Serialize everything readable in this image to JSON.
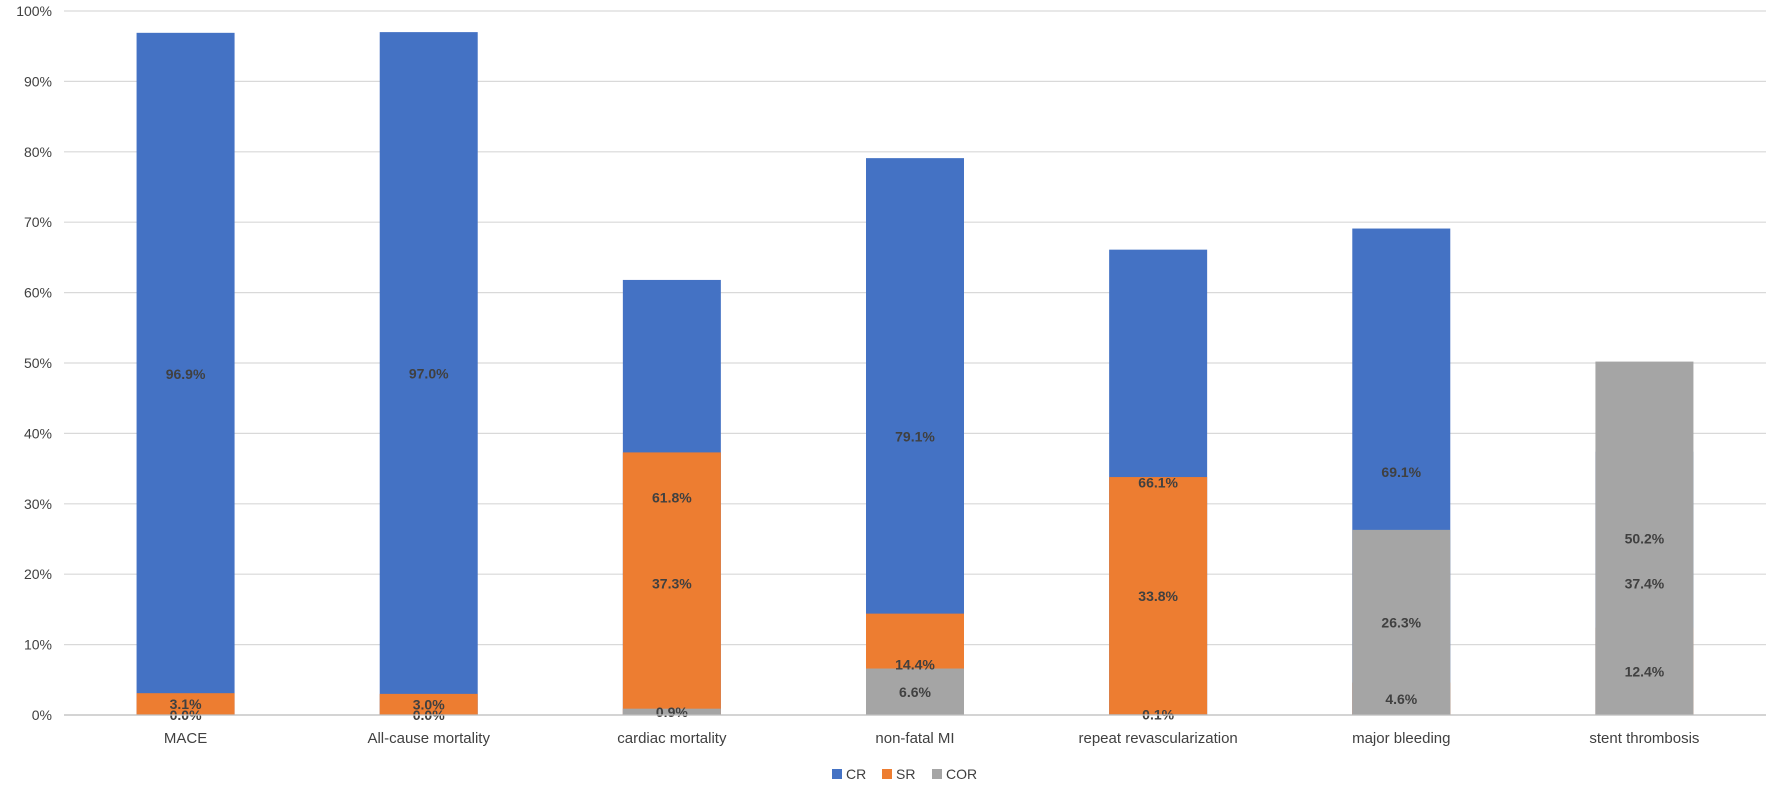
{
  "chart_data": {
    "type": "bar",
    "stacked": true,
    "percent": true,
    "title": "",
    "xlabel": "",
    "ylabel": "",
    "ylim": [
      0,
      100
    ],
    "yticks": [
      "0%",
      "10%",
      "20%",
      "30%",
      "40%",
      "50%",
      "60%",
      "70%",
      "80%",
      "90%",
      "100%"
    ],
    "categories": [
      "MACE",
      "All-cause mortality",
      "cardiac mortality",
      "non-fatal MI",
      "repeat revascularization",
      "major bleeding",
      "stent thrombosis"
    ],
    "series": [
      {
        "name": "CR",
        "color": "#4472C4",
        "values": [
          96.9,
          97.0,
          61.8,
          79.1,
          66.1,
          69.1,
          37.4
        ],
        "labels": [
          "96.9%",
          "97.0%",
          "61.8%",
          "79.1%",
          "66.1%",
          "69.1%",
          "37.4%"
        ]
      },
      {
        "name": "SR",
        "color": "#ED7D31",
        "values": [
          3.1,
          3.0,
          37.3,
          14.4,
          33.8,
          4.6,
          12.4
        ],
        "labels": [
          "3.1%",
          "3.0%",
          "37.3%",
          "14.4%",
          "33.8%",
          "4.6%",
          "12.4%"
        ]
      },
      {
        "name": "COR",
        "color": "#A5A5A5",
        "values": [
          0.0,
          0.0,
          0.9,
          6.6,
          0.1,
          26.3,
          50.2
        ],
        "labels": [
          "0.0%",
          "0.0%",
          "0.9%",
          "6.6%",
          "0.1%",
          "26.3%",
          "50.2%"
        ]
      }
    ],
    "grid": true,
    "legend": "bottom-center"
  }
}
